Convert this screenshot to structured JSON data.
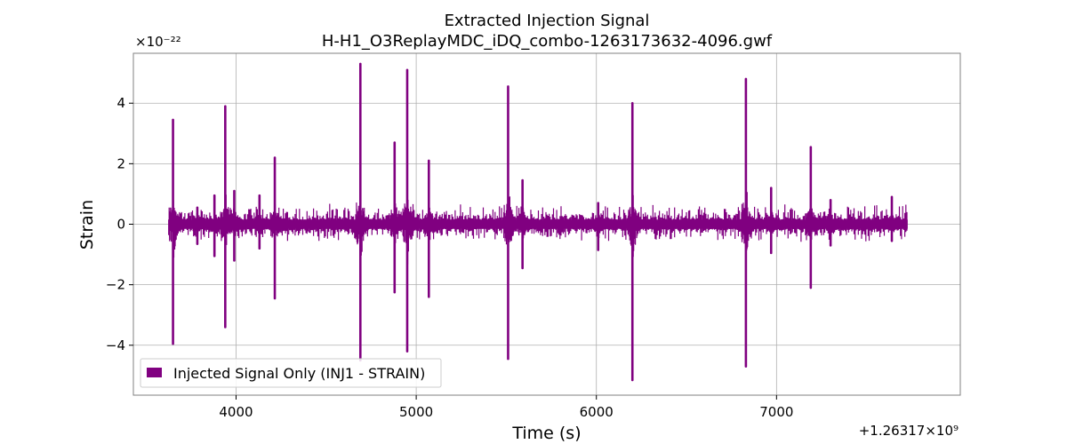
{
  "chart_data": {
    "type": "line",
    "title": "Extracted Injection Signal",
    "subtitle": "H-H1_O3ReplayMDC_iDQ_combo-1263173632-4096.gwf",
    "xlabel": "Time (s)",
    "ylabel": "Strain",
    "x_offset_label": "+1.26317×10⁹",
    "y_multiplier_label": "×10⁻²²",
    "xlim": [
      3430,
      8020
    ],
    "ylim": [
      -5.65,
      5.65
    ],
    "x_ticks": [
      4000,
      5000,
      6000,
      7000
    ],
    "x_tick_labels": [
      "4000",
      "5000",
      "6000",
      "7000"
    ],
    "y_ticks": [
      4,
      2,
      0,
      -2,
      -4
    ],
    "y_tick_labels": [
      "4",
      "2",
      "0",
      "−2",
      "−4"
    ],
    "grid": true,
    "legend_position": "bottom-left",
    "series": [
      {
        "name": "Injected Signal Only (INJ1 - STRAIN)",
        "color": "#800080",
        "x_range": [
          3632,
          7728
        ],
        "baseline_band": [
          -0.15,
          0.15
        ],
        "spikes": [
          {
            "x": 3650,
            "max": 3.45,
            "min": -3.95
          },
          {
            "x": 3785,
            "max": 0.55,
            "min": -0.65
          },
          {
            "x": 3880,
            "max": 0.95,
            "min": -1.05
          },
          {
            "x": 3940,
            "max": 3.9,
            "min": -3.4
          },
          {
            "x": 3990,
            "max": 1.1,
            "min": -1.2
          },
          {
            "x": 4130,
            "max": 0.95,
            "min": -0.8
          },
          {
            "x": 4215,
            "max": 2.2,
            "min": -2.45
          },
          {
            "x": 4690,
            "max": 5.3,
            "min": -4.5
          },
          {
            "x": 4880,
            "max": 2.7,
            "min": -2.25
          },
          {
            "x": 4950,
            "max": 5.1,
            "min": -4.2
          },
          {
            "x": 5070,
            "max": 2.1,
            "min": -2.4
          },
          {
            "x": 5510,
            "max": 4.55,
            "min": -4.45
          },
          {
            "x": 5590,
            "max": 1.45,
            "min": -1.45
          },
          {
            "x": 6010,
            "max": 0.7,
            "min": -0.85
          },
          {
            "x": 6200,
            "max": 4.0,
            "min": -5.15
          },
          {
            "x": 6830,
            "max": 4.8,
            "min": -4.7
          },
          {
            "x": 6970,
            "max": 1.2,
            "min": -0.95
          },
          {
            "x": 7190,
            "max": 2.55,
            "min": -2.1
          },
          {
            "x": 7300,
            "max": 0.8,
            "min": -0.7
          },
          {
            "x": 7640,
            "max": 0.9,
            "min": -0.55
          }
        ]
      }
    ]
  }
}
